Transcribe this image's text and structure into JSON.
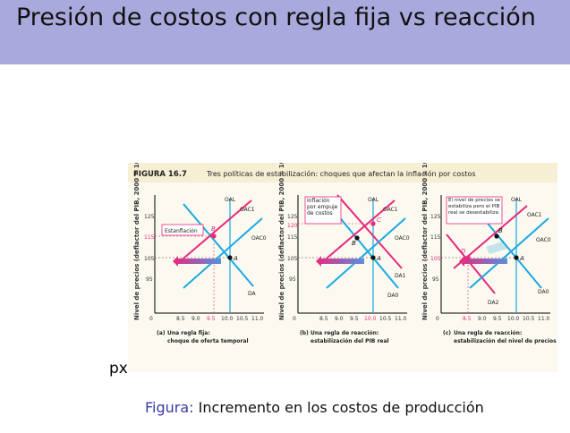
{
  "slide": {
    "title": "Presión de costos con regla fija vs reacción",
    "title_bar_color": "#a9a9dd"
  },
  "stray_text": "px",
  "caption": {
    "label": "Figura:",
    "text": "Incremento en los costos de producción"
  },
  "figure": {
    "heading_number": "FIGURA 16.7",
    "heading_text": "Tres políticas de estabilización: choques que afectan la inflación por costos",
    "y_axis_label": "Nivel de precios (deflactor del PIB, 2000 = 100)",
    "x_axis_label": "PIB real (billones de $ de 2000)",
    "x_ticks": [
      "8.5",
      "9.0",
      "9.5",
      "10.0",
      "10.5",
      "11.0"
    ],
    "x_zero": "0",
    "colors": {
      "oal": "#19a9e1",
      "shifted": "#e8297c",
      "arrow": "#8f5fc4",
      "callout_border": "#e8297c"
    },
    "panels": [
      {
        "y_ticks": [
          "125",
          "115",
          "105",
          "95"
        ],
        "callout": "Estanflación",
        "curve_labels": {
          "oal": "OAL",
          "oac1": "OAC1",
          "oac0": "OAC0",
          "da": "DA"
        },
        "points": {
          "a": "A",
          "b": "B"
        },
        "caption_letter": "(a)",
        "caption_line1": "Una regla fija:",
        "caption_line2": "choque de oferta temporal"
      },
      {
        "y_ticks": [
          "125",
          "120",
          "115",
          "105",
          "95"
        ],
        "callout": "Inflación por empuje de costos",
        "curve_labels": {
          "oal": "OAL",
          "oac1": "OAC1",
          "oac0": "OAC0",
          "da1": "DA1",
          "da0": "DA0"
        },
        "points": {
          "a": "A",
          "b": "B",
          "c": "C"
        },
        "caption_letter": "(b)",
        "caption_line1": "Una regla de reacción:",
        "caption_line2": "estabilización del PIB real"
      },
      {
        "y_ticks": [
          "125",
          "115",
          "105",
          "95"
        ],
        "callout": "El nivel de precios se estabiliza pero el PIB real se desestabiliza",
        "curve_labels": {
          "oal": "OAL",
          "oac1": "OAC1",
          "oac0": "OAC0",
          "da0": "DA0",
          "da2": "DA2"
        },
        "points": {
          "a": "A",
          "b": "B",
          "d": "D"
        },
        "caption_letter": "(c)",
        "caption_line1": "Una regla de reacción:",
        "caption_line2": "estabilización del nivel de precios"
      }
    ]
  }
}
